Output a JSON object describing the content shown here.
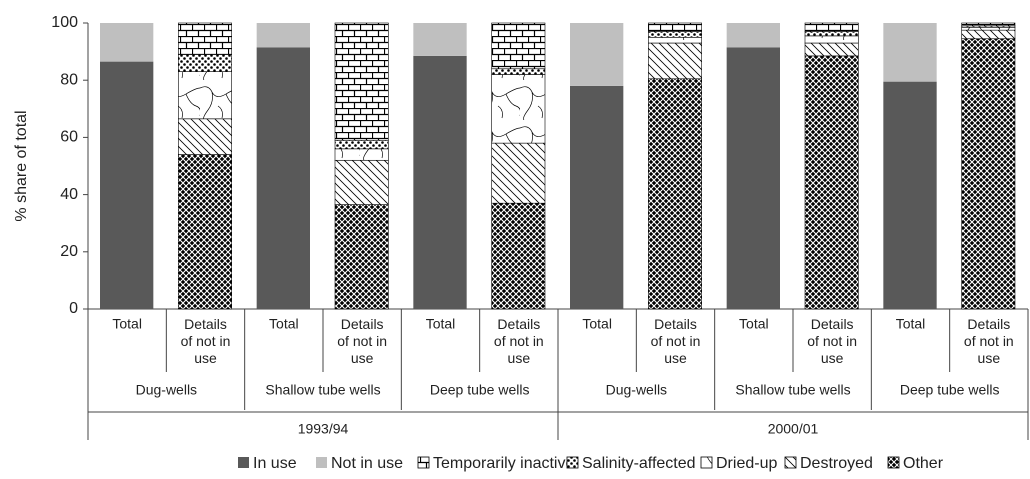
{
  "chart_data": {
    "type": "stacked_bar",
    "y_label": "% share of total",
    "ylim": [
      0,
      100
    ],
    "yticks": [
      0,
      20,
      40,
      60,
      80,
      100
    ],
    "grid": false,
    "legend": "bottom",
    "categories": [
      "Total",
      "Details of not in use",
      "Total",
      "Details of not in use",
      "Total",
      "Details of not in use",
      "Total",
      "Details of not in use",
      "Total",
      "Details of not in use",
      "Total",
      "Details of not in use"
    ],
    "groups": [
      "Dug-wells",
      "Shallow tube wells",
      "Deep tube wells",
      "Dug-wells",
      "Shallow tube wells",
      "Deep tube wells"
    ],
    "periods": [
      "1993/94",
      "2000/01"
    ],
    "series": [
      {
        "name": "In use",
        "color": "#595959",
        "pattern": "solid",
        "values": [
          86.5,
          null,
          91.5,
          null,
          88.5,
          null,
          78,
          null,
          91.5,
          null,
          79.5,
          null
        ]
      },
      {
        "name": "Not in use",
        "color": "#bfbfbf",
        "pattern": "solid",
        "values": [
          13.5,
          null,
          8.5,
          null,
          11.5,
          null,
          22,
          null,
          8.5,
          null,
          20.5,
          null
        ]
      },
      {
        "name": "Temporarily inactive",
        "color": "#000000",
        "pattern": "bricks",
        "values": [
          null,
          11,
          null,
          41,
          null,
          16,
          null,
          3,
          null,
          3,
          null,
          1
        ]
      },
      {
        "name": "Salinity-affected",
        "color": "#000000",
        "pattern": "dots",
        "values": [
          null,
          6,
          null,
          3,
          null,
          2,
          null,
          2,
          null,
          1.5,
          null,
          0.5
        ]
      },
      {
        "name": "Dried-up",
        "color": "#000000",
        "pattern": "cracks",
        "values": [
          null,
          16.5,
          null,
          4,
          null,
          24,
          null,
          2,
          null,
          2.5,
          null,
          1
        ]
      },
      {
        "name": "Destroyed",
        "color": "#000000",
        "pattern": "hatch",
        "values": [
          null,
          12.5,
          null,
          15.5,
          null,
          21,
          null,
          12.5,
          null,
          4.5,
          null,
          3
        ]
      },
      {
        "name": "Other",
        "color": "#000000",
        "pattern": "crosshatch",
        "values": [
          null,
          54,
          null,
          36.5,
          null,
          37,
          null,
          80.5,
          null,
          88.5,
          null,
          94.5
        ]
      }
    ]
  }
}
